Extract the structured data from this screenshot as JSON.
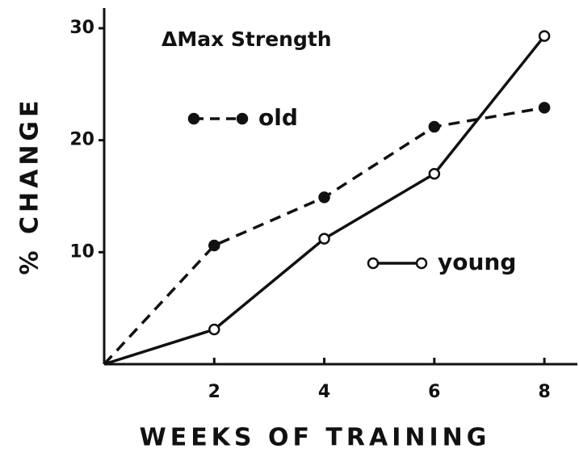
{
  "chart_data": {
    "type": "line",
    "title": "ΔMax Strength",
    "x_label": "WEEKS OF TRAINING",
    "y_label": "% CHANGE",
    "x": [
      0,
      2,
      4,
      6,
      8
    ],
    "series": [
      {
        "name": "old",
        "color": "#111111",
        "style": "dashed",
        "marker": "filled",
        "values": [
          0,
          10.6,
          14.9,
          21.2,
          22.9
        ]
      },
      {
        "name": "young",
        "color": "#111111",
        "style": "solid",
        "marker": "open",
        "values": [
          0,
          3.1,
          11.2,
          17.0,
          29.3
        ]
      }
    ],
    "xlim": [
      0,
      8.6
    ],
    "xticks": [
      2,
      4,
      6,
      8
    ],
    "ylim": [
      0,
      31.8
    ],
    "yticks": [
      10,
      20,
      30
    ]
  }
}
